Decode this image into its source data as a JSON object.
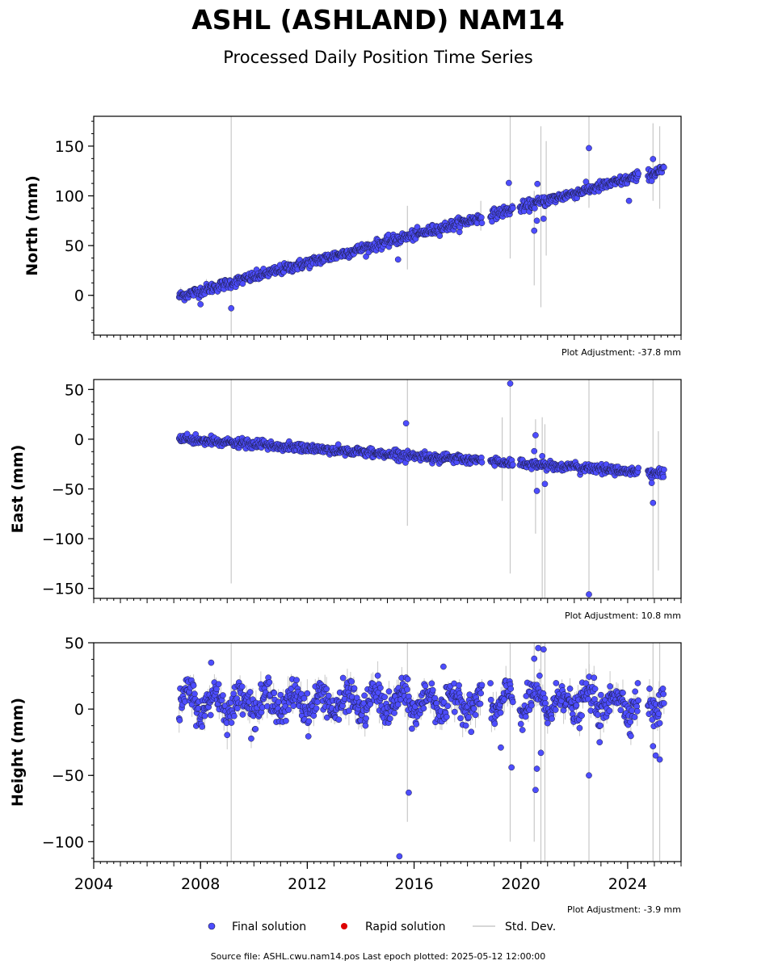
{
  "chart_data": [
    {
      "type": "scatter",
      "panel": "north",
      "title": "ASHL (ASHLAND) NAM14",
      "subtitle": "Processed Daily Position Time Series",
      "ylabel": "North (mm)",
      "xlim": [
        2004.0,
        2026.0
      ],
      "ylim": [
        -40,
        180
      ],
      "yticks": [
        0,
        50,
        100,
        150
      ],
      "yticklabels": [
        "0",
        "50",
        "100",
        "150"
      ],
      "adjustment": "Plot Adjustment: -37.8 mm",
      "trend": {
        "start_year": 2007.2,
        "start_value": -1,
        "rate_mm_per_year": 7.0
      },
      "data_start": 2007.2,
      "data_end": 2025.36,
      "scatter_mm": 2.6,
      "outliers": [
        {
          "x": 2008.0,
          "y": -9
        },
        {
          "x": 2009.15,
          "y": -13
        },
        {
          "x": 2015.4,
          "y": 36
        },
        {
          "x": 2019.55,
          "y": 113
        },
        {
          "x": 2020.5,
          "y": 65
        },
        {
          "x": 2020.6,
          "y": 75
        },
        {
          "x": 2020.62,
          "y": 112
        },
        {
          "x": 2020.85,
          "y": 77
        },
        {
          "x": 2022.55,
          "y": 148
        },
        {
          "x": 2024.05,
          "y": 95
        },
        {
          "x": 2024.95,
          "y": 137
        },
        {
          "x": 2024.9,
          "y": 115
        }
      ],
      "std_bars": [
        {
          "x": 2009.15,
          "lo": -40,
          "hi": 180
        },
        {
          "x": 2015.75,
          "lo": 26,
          "hi": 90
        },
        {
          "x": 2019.6,
          "lo": 37,
          "hi": 180
        },
        {
          "x": 2020.5,
          "lo": 10,
          "hi": 105
        },
        {
          "x": 2020.75,
          "lo": -12,
          "hi": 170
        },
        {
          "x": 2020.95,
          "lo": 40,
          "hi": 155
        },
        {
          "x": 2022.55,
          "lo": 88,
          "hi": 180
        },
        {
          "x": 2024.95,
          "lo": 95,
          "hi": 173
        },
        {
          "x": 2025.2,
          "lo": 87,
          "hi": 170
        },
        {
          "x": 2018.5,
          "lo": 65,
          "hi": 95
        }
      ]
    },
    {
      "type": "scatter",
      "panel": "east",
      "ylabel": "East (mm)",
      "xlim": [
        2004.0,
        2026.0
      ],
      "ylim": [
        -160,
        60
      ],
      "yticks": [
        -150,
        -100,
        -50,
        0,
        50
      ],
      "yticklabels": [
        "−150",
        "−100",
        "−50",
        "0",
        "50"
      ],
      "adjustment": "Plot Adjustment: 10.8 mm",
      "trend": {
        "start_year": 2007.2,
        "start_value": 0,
        "rate_mm_per_year": -1.9
      },
      "data_start": 2007.2,
      "data_end": 2025.36,
      "scatter_mm": 2.2,
      "outliers": [
        {
          "x": 2015.7,
          "y": 16
        },
        {
          "x": 2019.6,
          "y": 56
        },
        {
          "x": 2020.55,
          "y": 4
        },
        {
          "x": 2020.5,
          "y": -12
        },
        {
          "x": 2020.6,
          "y": -52
        },
        {
          "x": 2020.8,
          "y": -17
        },
        {
          "x": 2020.9,
          "y": -45
        },
        {
          "x": 2022.55,
          "y": -156
        },
        {
          "x": 2024.95,
          "y": -64
        },
        {
          "x": 2024.9,
          "y": -44
        }
      ],
      "std_bars": [
        {
          "x": 2009.15,
          "lo": -145,
          "hi": 60
        },
        {
          "x": 2015.75,
          "lo": -87,
          "hi": 60
        },
        {
          "x": 2019.3,
          "lo": -62,
          "hi": 22
        },
        {
          "x": 2019.6,
          "lo": -135,
          "hi": 60
        },
        {
          "x": 2020.55,
          "lo": -95,
          "hi": 20
        },
        {
          "x": 2020.8,
          "lo": -160,
          "hi": 22
        },
        {
          "x": 2020.9,
          "lo": -160,
          "hi": 15
        },
        {
          "x": 2022.55,
          "lo": -160,
          "hi": 60
        },
        {
          "x": 2024.95,
          "lo": -160,
          "hi": 60
        },
        {
          "x": 2025.15,
          "lo": -132,
          "hi": 8
        }
      ]
    },
    {
      "type": "scatter",
      "panel": "height",
      "ylabel": "Height (mm)",
      "xlim": [
        2004.0,
        2026.0
      ],
      "ylim": [
        -115,
        50
      ],
      "yticks": [
        -100,
        -50,
        0,
        50
      ],
      "yticklabels": [
        "−100",
        "−50",
        "0",
        "50"
      ],
      "xticks": [
        2004,
        2008,
        2012,
        2016,
        2020,
        2024
      ],
      "xticklabels": [
        "2004",
        "2008",
        "2012",
        "2016",
        "2020",
        "2024"
      ],
      "adjustment": "Plot Adjustment: -3.9 mm",
      "trend": {
        "start_year": 2007.2,
        "start_value": 5,
        "rate_mm_per_year": 0.0
      },
      "seasonal_amplitude_mm": 8,
      "data_start": 2007.2,
      "data_end": 2025.36,
      "scatter_mm": 6.0,
      "outliers": [
        {
          "x": 2008.4,
          "y": 35
        },
        {
          "x": 2015.45,
          "y": -111
        },
        {
          "x": 2015.8,
          "y": -63
        },
        {
          "x": 2019.25,
          "y": -29
        },
        {
          "x": 2019.65,
          "y": -44
        },
        {
          "x": 2020.5,
          "y": 38
        },
        {
          "x": 2020.55,
          "y": -61
        },
        {
          "x": 2020.6,
          "y": -45
        },
        {
          "x": 2020.65,
          "y": 46
        },
        {
          "x": 2020.75,
          "y": -33
        },
        {
          "x": 2020.85,
          "y": 45
        },
        {
          "x": 2022.55,
          "y": -50
        },
        {
          "x": 2022.95,
          "y": -25
        },
        {
          "x": 2024.95,
          "y": -28
        },
        {
          "x": 2025.05,
          "y": -35
        },
        {
          "x": 2025.2,
          "y": -38
        },
        {
          "x": 2017.1,
          "y": 32
        }
      ],
      "std_bars": [
        {
          "x": 2009.15,
          "lo": -115,
          "hi": 50
        },
        {
          "x": 2015.75,
          "lo": -85,
          "hi": 50
        },
        {
          "x": 2019.6,
          "lo": -100,
          "hi": 50
        },
        {
          "x": 2020.5,
          "lo": -100,
          "hi": 50
        },
        {
          "x": 2020.75,
          "lo": -115,
          "hi": 50
        },
        {
          "x": 2020.9,
          "lo": -115,
          "hi": 50
        },
        {
          "x": 2022.55,
          "lo": -115,
          "hi": 50
        },
        {
          "x": 2024.95,
          "lo": -115,
          "hi": 50
        },
        {
          "x": 2025.2,
          "lo": -115,
          "hi": 50
        }
      ]
    }
  ],
  "legend": {
    "final_label": "Final solution",
    "rapid_label": "Rapid solution",
    "std_label": "Std. Dev.",
    "final_color": "#4d4dff",
    "final_edge": "#1a1a3a",
    "rapid_color": "#dd0000",
    "std_color": "#c8c8c8"
  },
  "footer": {
    "source": "Source file: ASHL.cwu.nam14.pos  Last epoch plotted: 2025-05-12 12:00:00"
  }
}
